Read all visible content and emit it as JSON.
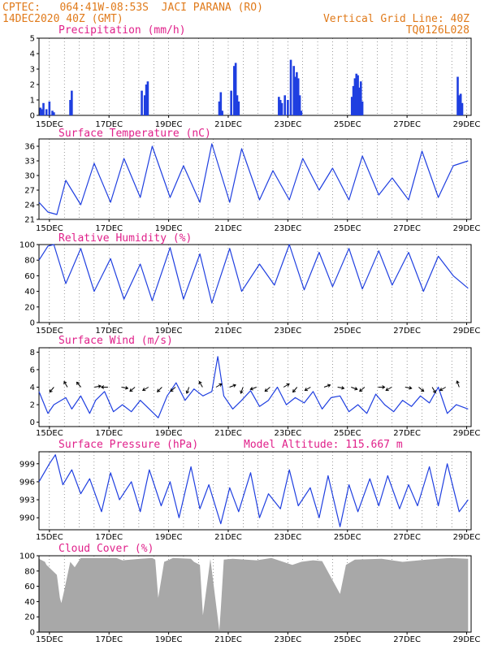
{
  "header": {
    "line1_left": "CPTEC:   064:41W-08:53S  JACI PARANA (RO)",
    "line2_left": "14DEC2020 40Z (GMT)",
    "line1_right": "Vertical Grid Line: 40Z",
    "line2_right": "TQ0126L028"
  },
  "colors": {
    "header_text": "#e07a1a",
    "panel_title": "#e0208a",
    "line": "#1f3fe0",
    "bar": "#1f3fe0",
    "cloud": "#a8a8a8",
    "arrow": "#000000"
  },
  "date_ticks": [
    "15DEC",
    "17DEC",
    "19DEC",
    "21DEC",
    "23DEC",
    "25DEC",
    "27DEC",
    "29DEC"
  ],
  "chart_data": [
    {
      "type": "bar",
      "title": "Precipitation (mm/h)",
      "ylim": [
        0,
        5
      ],
      "yticks": [
        "0",
        "1",
        "2",
        "3",
        "4",
        "5"
      ],
      "x_unit": "days since 14DEC 16Z",
      "x": [
        0.05,
        0.1,
        0.15,
        0.25,
        0.35,
        0.45,
        0.5,
        1.05,
        1.1,
        3.45,
        3.55,
        3.6,
        3.65,
        6.05,
        6.1,
        6.15,
        6.45,
        6.55,
        6.6,
        6.65,
        6.7,
        8.05,
        8.1,
        8.15,
        8.25,
        8.35,
        8.45,
        8.55,
        8.6,
        8.65,
        8.7,
        8.75,
        8.8,
        10.5,
        10.55,
        10.6,
        10.65,
        10.7,
        10.75,
        10.8,
        10.85,
        14.05,
        14.1,
        14.15,
        14.2
      ],
      "values": [
        0.5,
        0.4,
        0.8,
        0.4,
        0.9,
        0.3,
        0.2,
        1.0,
        1.6,
        1.6,
        1.3,
        2.0,
        2.2,
        0.9,
        1.5,
        0.3,
        1.6,
        3.2,
        3.4,
        1.3,
        0.9,
        1.2,
        1.0,
        0.8,
        1.3,
        1.0,
        3.6,
        3.2,
        2.5,
        2.8,
        2.4,
        1.3,
        0.3,
        1.2,
        1.9,
        2.4,
        2.7,
        2.6,
        1.8,
        2.2,
        0.9,
        2.5,
        1.3,
        1.4,
        0.8
      ]
    },
    {
      "type": "line",
      "title": "Surface Temperature (nC)",
      "ylim": [
        21,
        37.5
      ],
      "yticks": [
        "21",
        "24",
        "27",
        "30",
        "33",
        "36"
      ],
      "x_unit": "days since 14DEC 16Z",
      "x": [
        0,
        0.3,
        0.6,
        0.9,
        1.4,
        1.85,
        2.4,
        2.85,
        3.4,
        3.8,
        4.4,
        4.85,
        5.4,
        5.8,
        6.4,
        6.8,
        7.4,
        7.85,
        8.4,
        8.85,
        9.4,
        9.85,
        10.4,
        10.85,
        11.4,
        11.85,
        12.4,
        12.85,
        13.4,
        13.9,
        14.4
      ],
      "values": [
        24.5,
        22.5,
        22,
        29,
        24,
        32.5,
        24.5,
        33.5,
        25.5,
        36,
        25.5,
        32,
        24.5,
        36.5,
        24.5,
        35.5,
        25,
        31,
        25,
        33.5,
        27,
        31.5,
        25,
        34,
        26,
        29.5,
        25,
        35,
        25.5,
        32,
        33
      ]
    },
    {
      "type": "line",
      "title": "Relative Humidity (%)",
      "ylim": [
        0,
        100
      ],
      "yticks": [
        "0",
        "20",
        "40",
        "60",
        "80",
        "100"
      ],
      "x_unit": "days since 14DEC 16Z",
      "x": [
        0,
        0.3,
        0.5,
        0.9,
        1.4,
        1.85,
        2.4,
        2.85,
        3.4,
        3.8,
        4.4,
        4.85,
        5.4,
        5.8,
        6.4,
        6.8,
        7.4,
        7.9,
        8.4,
        8.9,
        9.4,
        9.85,
        10.4,
        10.85,
        11.4,
        11.85,
        12.4,
        12.9,
        13.4,
        13.9,
        14.4
      ],
      "values": [
        80,
        98,
        100,
        50,
        95,
        40,
        82,
        30,
        75,
        28,
        96,
        30,
        88,
        25,
        95,
        40,
        75,
        48,
        100,
        42,
        90,
        46,
        95,
        43,
        92,
        48,
        90,
        40,
        85,
        60,
        44
      ]
    },
    {
      "type": "line",
      "title": "Surface Wind (m/s)",
      "ylim": [
        -0.5,
        8.5
      ],
      "yticks": [
        "0",
        "2",
        "4",
        "6",
        "8"
      ],
      "x_unit": "days since 14DEC 16Z",
      "x": [
        0,
        0.3,
        0.5,
        0.9,
        1.1,
        1.4,
        1.7,
        1.9,
        2.2,
        2.5,
        2.8,
        3.1,
        3.4,
        3.7,
        4.0,
        4.3,
        4.6,
        4.9,
        5.2,
        5.5,
        5.8,
        6.0,
        6.2,
        6.5,
        6.8,
        7.1,
        7.4,
        7.7,
        8.0,
        8.3,
        8.6,
        8.9,
        9.2,
        9.5,
        9.8,
        10.1,
        10.4,
        10.7,
        11.0,
        11.3,
        11.6,
        11.9,
        12.2,
        12.5,
        12.8,
        13.1,
        13.4,
        13.7,
        14.0,
        14.4
      ],
      "values": [
        3.5,
        1,
        2,
        2.8,
        1.5,
        3,
        1,
        2.5,
        3.5,
        1.2,
        2,
        1.2,
        2.5,
        1.5,
        0.5,
        3,
        4.5,
        2.5,
        3.8,
        3,
        3.5,
        7.5,
        3,
        1.5,
        2.5,
        3.6,
        1.8,
        2.5,
        4,
        2,
        2.8,
        2.2,
        3.5,
        1.5,
        2.8,
        3,
        1.2,
        2,
        1,
        3.2,
        2,
        1.2,
        2.5,
        1.8,
        3,
        2.2,
        4,
        1,
        2,
        1.5
      ]
    },
    {
      "type": "line",
      "title": "Surface Pressure (hPa)",
      "annotation": "Model Altitude: 115.667 m",
      "ylim": [
        988,
        1001
      ],
      "yticks": [
        "990",
        "993",
        "996",
        "999"
      ],
      "x_unit": "days since 14DEC 16Z",
      "x": [
        0,
        0.35,
        0.55,
        0.8,
        1.1,
        1.4,
        1.7,
        2.1,
        2.4,
        2.7,
        3.1,
        3.4,
        3.7,
        4.1,
        4.4,
        4.7,
        5.1,
        5.4,
        5.7,
        6.1,
        6.4,
        6.7,
        7.1,
        7.4,
        7.7,
        8.1,
        8.4,
        8.7,
        9.1,
        9.4,
        9.7,
        10.1,
        10.4,
        10.7,
        11.1,
        11.4,
        11.7,
        12.1,
        12.4,
        12.7,
        13.1,
        13.4,
        13.7,
        14.1,
        14.4
      ],
      "values": [
        996,
        999,
        1000.5,
        995.5,
        998,
        994,
        996.5,
        991,
        997.5,
        993,
        996,
        991,
        998,
        992,
        996,
        990,
        998.5,
        991.5,
        995.5,
        989,
        995,
        991,
        997.5,
        990,
        994,
        991.5,
        998,
        992,
        995,
        990,
        997,
        988.5,
        995.5,
        991,
        996.5,
        992,
        997,
        991.5,
        995.5,
        992,
        998.5,
        992,
        999,
        991,
        993
      ]
    },
    {
      "type": "area",
      "title": "Cloud Cover (%)",
      "ylim": [
        0,
        100
      ],
      "yticks": [
        "0",
        "20",
        "40",
        "60",
        "80",
        "100"
      ],
      "x_unit": "days since 14DEC 16Z",
      "x": [
        0,
        0.2,
        0.25,
        0.6,
        0.7,
        0.75,
        0.85,
        1.05,
        1.2,
        1.4,
        2.6,
        2.8,
        3.4,
        3.8,
        3.9,
        4.0,
        4.2,
        4.5,
        5.1,
        5.2,
        5.3,
        5.4,
        5.5,
        5.75,
        6.05,
        6.1,
        6.2,
        6.5,
        7.3,
        7.8,
        8.5,
        8.8,
        9.2,
        9.5,
        10.1,
        10.3,
        10.6,
        11.5,
        12.2,
        13.0,
        13.8,
        14.4
      ],
      "values": [
        96,
        92,
        88,
        75,
        45,
        38,
        55,
        92,
        85,
        97,
        97,
        94,
        96,
        97,
        95,
        45,
        92,
        97,
        96,
        92,
        90,
        88,
        22,
        96,
        2,
        30,
        95,
        96,
        94,
        97,
        88,
        92,
        94,
        93,
        50,
        88,
        95,
        96,
        92,
        95,
        97,
        96
      ]
    }
  ],
  "wind_arrows": {
    "directions_deg": [
      220,
      330,
      320,
      80,
      270,
      100,
      230,
      240,
      225,
      230,
      200,
      330,
      60,
      70,
      200,
      250,
      230,
      60,
      220,
      240,
      70,
      100,
      110,
      230,
      90,
      240,
      100,
      130,
      150,
      240,
      340
    ]
  }
}
